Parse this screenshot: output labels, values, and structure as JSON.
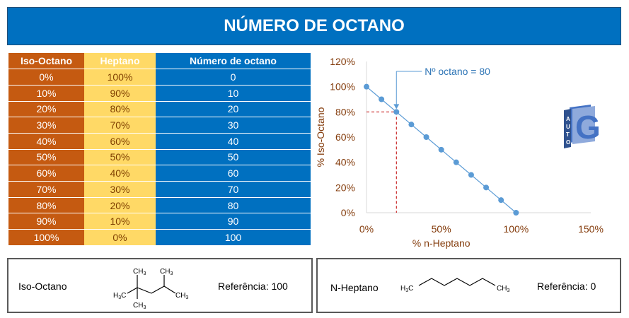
{
  "title": "NÚMERO DE OCTANO",
  "table": {
    "headers": [
      "Iso-Octano",
      "Heptano",
      "Número de octano"
    ],
    "rows": [
      [
        "0%",
        "100%",
        "0"
      ],
      [
        "10%",
        "90%",
        "10"
      ],
      [
        "20%",
        "80%",
        "20"
      ],
      [
        "30%",
        "70%",
        "30"
      ],
      [
        "40%",
        "60%",
        "40"
      ],
      [
        "50%",
        "50%",
        "50"
      ],
      [
        "60%",
        "40%",
        "60"
      ],
      [
        "70%",
        "30%",
        "70"
      ],
      [
        "80%",
        "20%",
        "80"
      ],
      [
        "90%",
        "10%",
        "90"
      ],
      [
        "100%",
        "0%",
        "100"
      ]
    ]
  },
  "chart_data": {
    "type": "scatter",
    "title": "",
    "xlabel": "% n-Heptano",
    "ylabel": "% Iso-Octano",
    "xlim": [
      0,
      150
    ],
    "ylim": [
      0,
      120
    ],
    "xticks": [
      0,
      50,
      100,
      150
    ],
    "yticks": [
      0,
      20,
      40,
      60,
      80,
      100,
      120
    ],
    "xtick_labels": [
      "0%",
      "50%",
      "100%",
      "150%"
    ],
    "ytick_labels": [
      "0%",
      "20%",
      "40%",
      "60%",
      "80%",
      "100%",
      "120%"
    ],
    "grid": false,
    "series": [
      {
        "x": [
          0,
          10,
          20,
          30,
          40,
          50,
          60,
          70,
          80,
          90,
          100
        ],
        "y": [
          100,
          90,
          80,
          70,
          60,
          50,
          40,
          30,
          20,
          10,
          0
        ],
        "color": "#5B9BD5"
      }
    ],
    "annotation": {
      "text": "Nº octano = 80",
      "x": 20,
      "y": 80,
      "guide_color": "#C00000"
    }
  },
  "logo": {
    "letters": [
      "G",
      "A",
      "U",
      "T",
      "O"
    ],
    "color": "#4472C4"
  },
  "molecules": [
    {
      "name": "Iso-Octano",
      "reference": "Referência: 100"
    },
    {
      "name": "N-Heptano",
      "reference": "Referência: 0"
    }
  ],
  "colors": {
    "title_bg": "#0070C0",
    "iso_col": "#C55A11",
    "heptane_col": "#FFD966",
    "octane_col": "#0070C0",
    "axis_text": "#843C0C"
  }
}
